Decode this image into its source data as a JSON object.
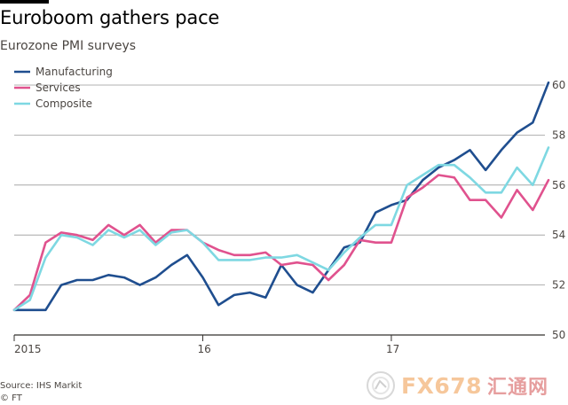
{
  "title": "Euroboom gathers pace",
  "subtitle": "Eurozone PMI surveys",
  "source_line": "Source: IHS Markit",
  "credit_line": "© FT",
  "watermark": {
    "brand": "FX678",
    "cn": "汇通网"
  },
  "colors": {
    "manufacturing": "#1f4e8f",
    "services": "#e0528e",
    "composite": "#7ed8e2",
    "grid": "#999999",
    "baseline": "#33302e"
  },
  "chart_data": {
    "type": "line",
    "title": "Euroboom gathers pace",
    "subtitle": "Eurozone PMI surveys",
    "x": [
      "2015-01",
      "2015-02",
      "2015-03",
      "2015-04",
      "2015-05",
      "2015-06",
      "2015-07",
      "2015-08",
      "2015-09",
      "2015-10",
      "2015-11",
      "2015-12",
      "2016-01",
      "2016-02",
      "2016-03",
      "2016-04",
      "2016-05",
      "2016-06",
      "2016-07",
      "2016-08",
      "2016-09",
      "2016-10",
      "2016-11",
      "2016-12",
      "2017-01",
      "2017-02",
      "2017-03",
      "2017-04",
      "2017-05",
      "2017-06",
      "2017-07",
      "2017-08",
      "2017-09",
      "2017-10",
      "2017-11"
    ],
    "x_tick_labels": [
      {
        "label": "2015",
        "x": "2015-01"
      },
      {
        "label": "16",
        "x": "2016-01"
      },
      {
        "label": "17",
        "x": "2017-01"
      }
    ],
    "ylim": [
      50,
      60
    ],
    "y_ticks": [
      50,
      52,
      54,
      56,
      58,
      60
    ],
    "y_axis_side": "right",
    "grid": true,
    "legend_position": "top-left",
    "series": [
      {
        "name": "Manufacturing",
        "color": "#1f4e8f",
        "values": [
          51.0,
          51.0,
          51.0,
          52.0,
          52.2,
          52.2,
          52.4,
          52.3,
          52.0,
          52.3,
          52.8,
          53.2,
          52.3,
          51.2,
          51.6,
          51.7,
          51.5,
          52.8,
          52.0,
          51.7,
          52.6,
          53.5,
          53.7,
          54.9,
          55.2,
          55.4,
          56.2,
          56.7,
          57.0,
          57.4,
          56.6,
          57.4,
          58.1,
          58.5,
          60.1
        ]
      },
      {
        "name": "Services",
        "color": "#e0528e",
        "values": [
          51.0,
          51.6,
          53.7,
          54.1,
          54.0,
          53.8,
          54.4,
          54.0,
          54.4,
          53.7,
          54.2,
          54.2,
          53.7,
          53.4,
          53.2,
          53.2,
          53.3,
          52.8,
          52.9,
          52.8,
          52.2,
          52.8,
          53.8,
          53.7,
          53.7,
          55.5,
          55.9,
          56.4,
          56.3,
          55.4,
          55.4,
          54.7,
          55.8,
          55.0,
          56.2
        ]
      },
      {
        "name": "Composite",
        "color": "#7ed8e2",
        "values": [
          51.0,
          51.4,
          53.1,
          54.0,
          53.9,
          53.6,
          54.2,
          53.9,
          54.2,
          53.6,
          54.1,
          54.2,
          53.7,
          53.0,
          53.0,
          53.0,
          53.1,
          53.1,
          53.2,
          52.9,
          52.6,
          53.3,
          53.9,
          54.4,
          54.4,
          56.0,
          56.4,
          56.8,
          56.8,
          56.3,
          55.7,
          55.7,
          56.7,
          56.0,
          57.5
        ]
      }
    ]
  }
}
